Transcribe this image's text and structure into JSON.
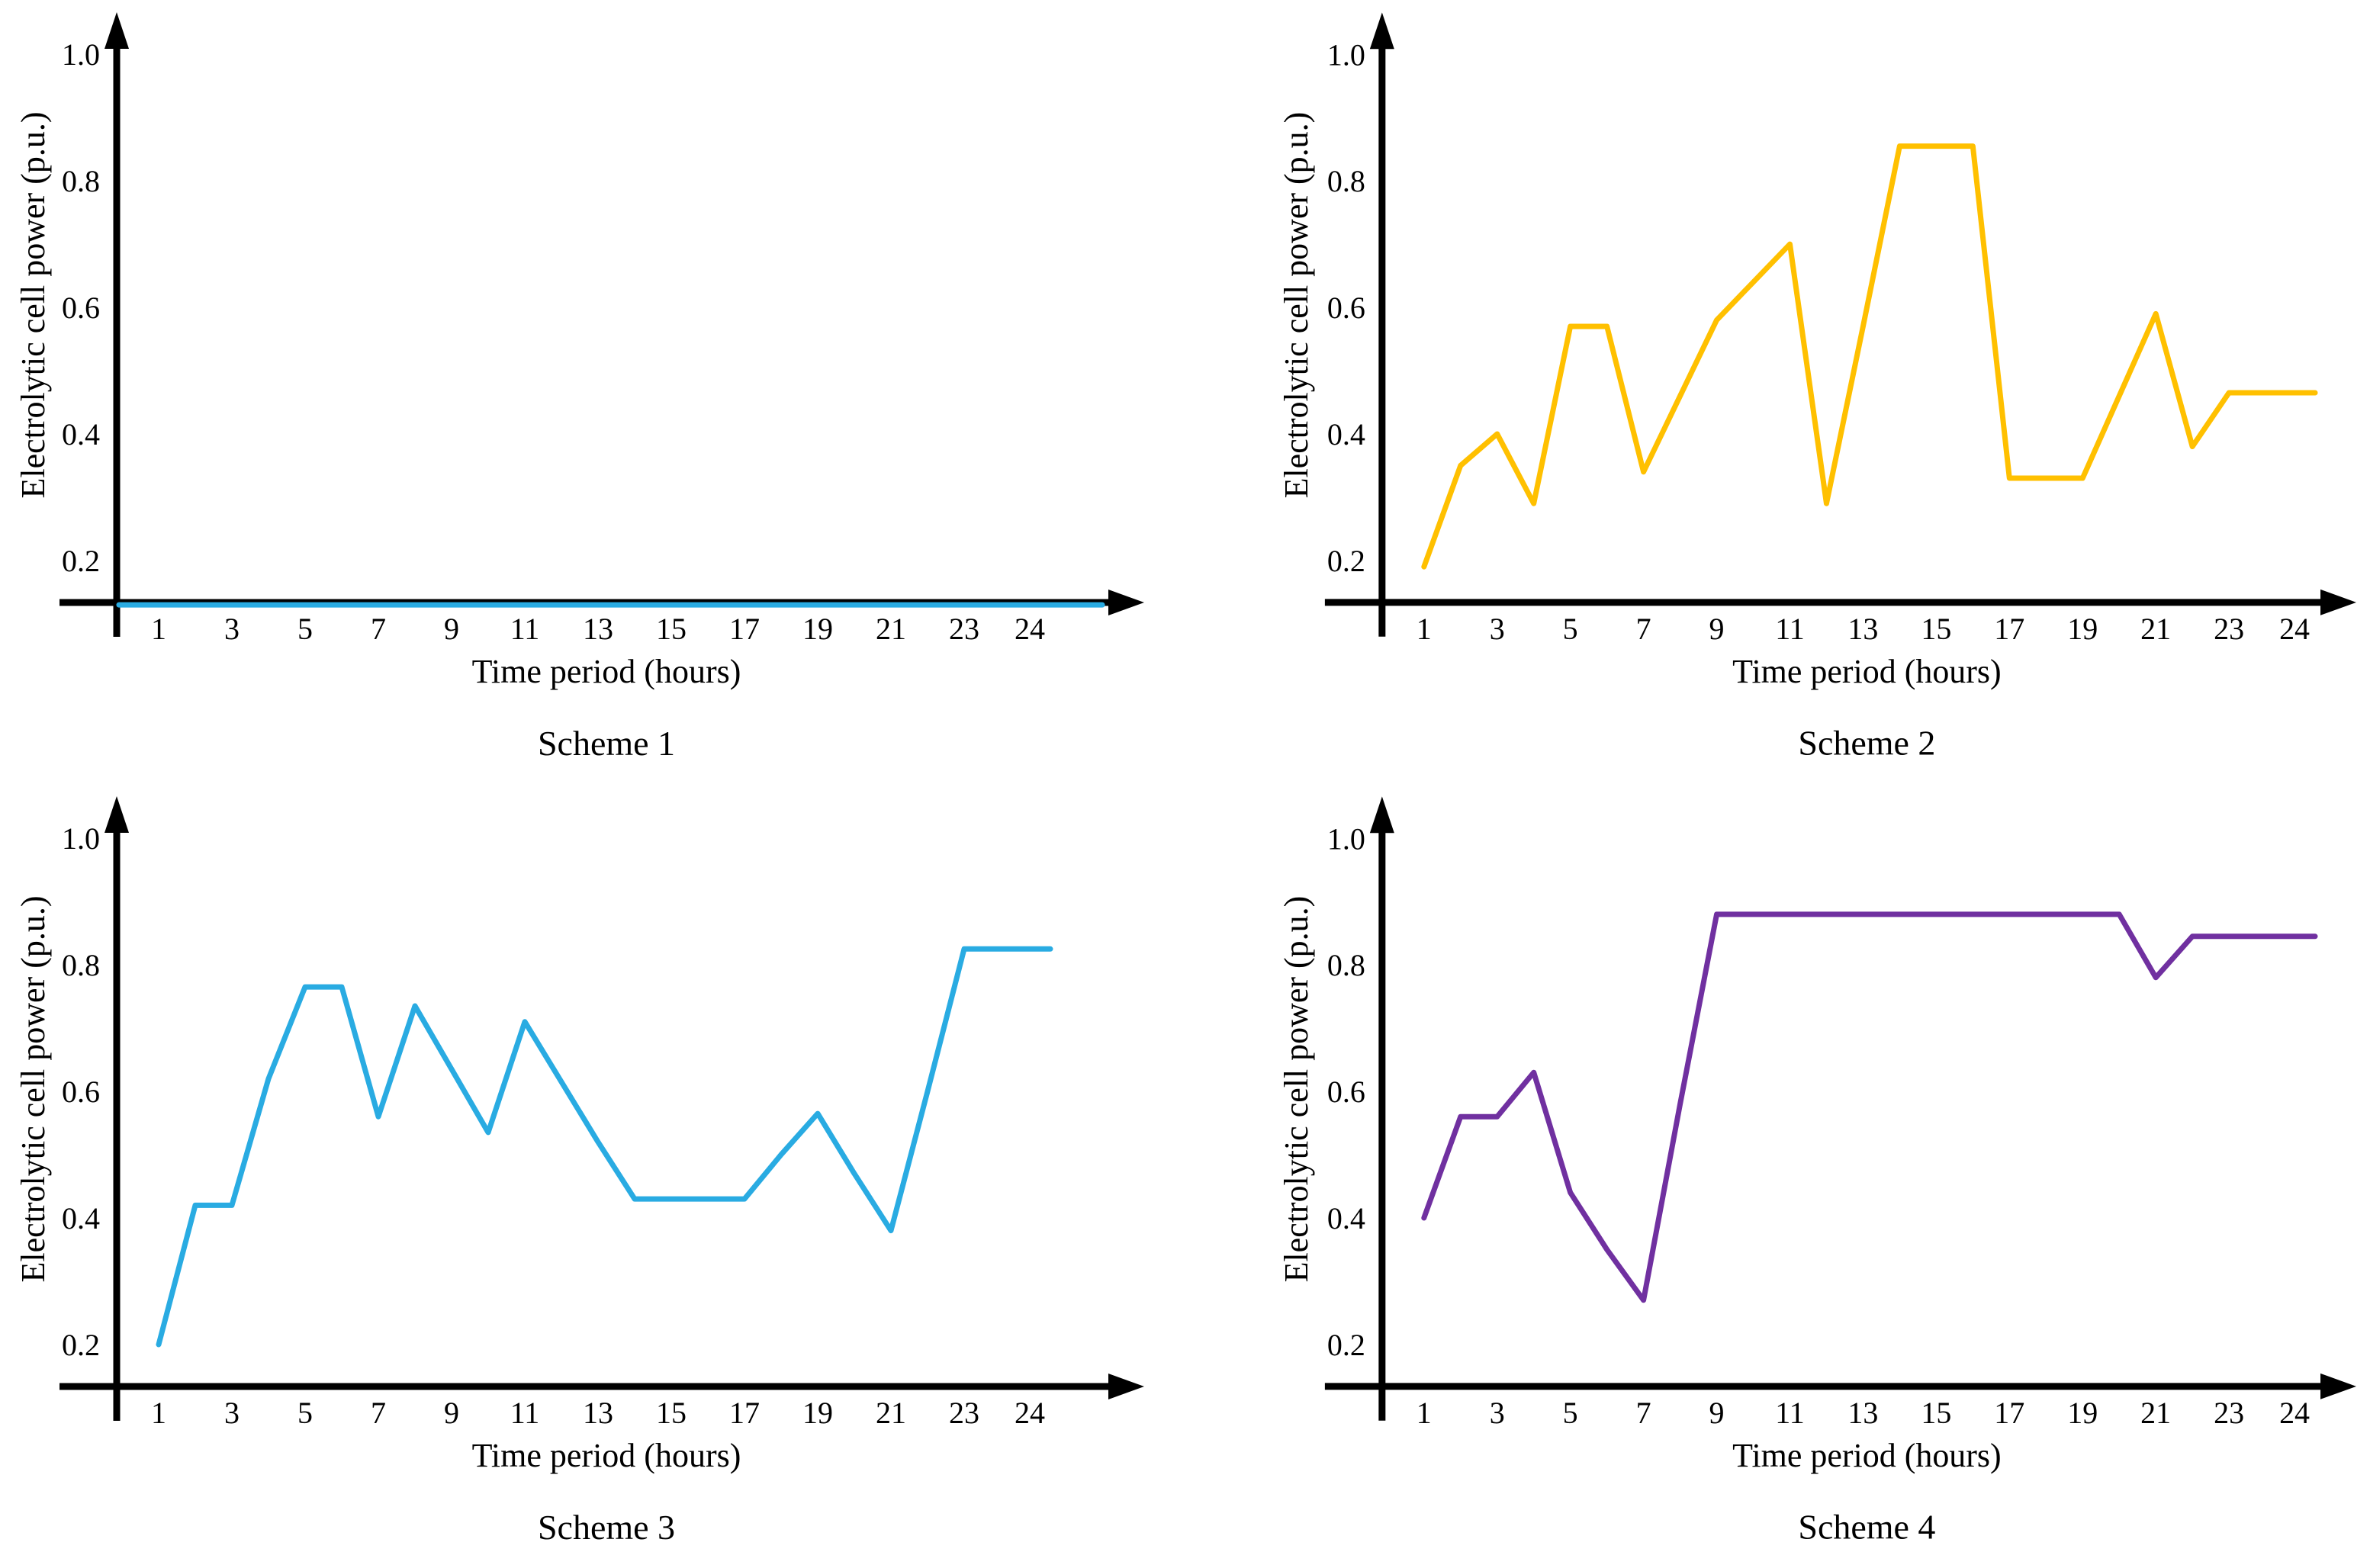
{
  "figure": {
    "background": "#ffffff",
    "axis_color": "#000000",
    "xlabel": "Time period (hours)",
    "ylabel": "Electrolytic cell power (p.u.)",
    "x_tick_labels": [
      1,
      3,
      5,
      7,
      9,
      11,
      13,
      15,
      17,
      19,
      21,
      23,
      24
    ],
    "y_tick_labels": [
      0.2,
      0.4,
      0.6,
      0.8,
      1.0
    ]
  },
  "chart_data": [
    {
      "type": "line",
      "title": "Scheme 1",
      "xlabel": "Time period (hours)",
      "ylabel": "Electrolytic cell power (p.u.)",
      "color": "#29ABE2",
      "grid": false,
      "legend": "none",
      "xlim": [
        1,
        24
      ],
      "ylim": [
        0.13,
        1.05
      ],
      "x_ticks": [
        1,
        3,
        5,
        7,
        9,
        11,
        13,
        15,
        17,
        19,
        21,
        23,
        24
      ],
      "y_ticks": [
        0.2,
        0.4,
        0.6,
        0.8,
        1.0
      ],
      "line_starts_at_axis": true,
      "x": [
        1,
        2,
        3,
        4,
        5,
        6,
        7,
        8,
        9,
        10,
        11,
        12,
        13,
        14,
        15,
        16,
        17,
        18,
        19,
        20,
        21,
        22,
        23,
        24
      ],
      "values": [
        0.13,
        0.13,
        0.13,
        0.13,
        0.13,
        0.13,
        0.13,
        0.13,
        0.13,
        0.13,
        0.13,
        0.13,
        0.13,
        0.13,
        0.13,
        0.13,
        0.13,
        0.13,
        0.13,
        0.13,
        0.13,
        0.13,
        0.13,
        0.13
      ]
    },
    {
      "type": "line",
      "title": "Scheme 2",
      "xlabel": "Time period (hours)",
      "ylabel": "Electrolytic cell power (p.u.)",
      "color": "#FFC000",
      "grid": false,
      "legend": "none",
      "xlim": [
        1,
        24
      ],
      "ylim": [
        0.13,
        1.05
      ],
      "x_ticks": [
        1,
        3,
        5,
        7,
        9,
        11,
        13,
        15,
        17,
        19,
        21,
        23,
        24
      ],
      "y_ticks": [
        0.2,
        0.4,
        0.6,
        0.8,
        1.0
      ],
      "line_starts_at_axis": false,
      "x": [
        1,
        2,
        3,
        4,
        5,
        6,
        7,
        8,
        9,
        10,
        11,
        12,
        13,
        14,
        15,
        16,
        17,
        18,
        19,
        20,
        21,
        22,
        23,
        24
      ],
      "values": [
        0.19,
        0.35,
        0.4,
        0.29,
        0.57,
        0.57,
        0.34,
        0.46,
        0.58,
        0.64,
        0.7,
        0.29,
        0.57,
        0.855,
        0.855,
        0.855,
        0.33,
        0.33,
        0.33,
        0.46,
        0.59,
        0.38,
        0.465,
        0.465
      ]
    },
    {
      "type": "line",
      "title": "Scheme 3",
      "xlabel": "Time period (hours)",
      "ylabel": "Electrolytic cell power (p.u.)",
      "color": "#29ABE2",
      "grid": false,
      "legend": "none",
      "xlim": [
        1,
        24
      ],
      "ylim": [
        0.13,
        1.05
      ],
      "x_ticks": [
        1,
        3,
        5,
        7,
        9,
        11,
        13,
        15,
        17,
        19,
        21,
        23,
        24
      ],
      "y_ticks": [
        0.2,
        0.4,
        0.6,
        0.8,
        1.0
      ],
      "line_starts_at_axis": false,
      "x": [
        1,
        2,
        3,
        4,
        5,
        6,
        7,
        8,
        9,
        10,
        11,
        12,
        13,
        14,
        15,
        16,
        17,
        18,
        19,
        20,
        21,
        22,
        23,
        24
      ],
      "values": [
        0.2,
        0.42,
        0.42,
        0.62,
        0.765,
        0.765,
        0.56,
        0.735,
        0.635,
        0.535,
        0.71,
        0.615,
        0.52,
        0.43,
        0.43,
        0.43,
        0.43,
        0.5,
        0.565,
        0.47,
        0.38,
        0.6,
        0.825,
        0.825
      ]
    },
    {
      "type": "line",
      "title": "Scheme 4",
      "xlabel": "Time period (hours)",
      "ylabel": "Electrolytic cell power (p.u.)",
      "color": "#7030A0",
      "grid": false,
      "legend": "none",
      "xlim": [
        1,
        24
      ],
      "ylim": [
        0.13,
        1.05
      ],
      "x_ticks": [
        1,
        3,
        5,
        7,
        9,
        11,
        13,
        15,
        17,
        19,
        21,
        23,
        24
      ],
      "y_ticks": [
        0.2,
        0.4,
        0.6,
        0.8,
        1.0
      ],
      "line_starts_at_axis": false,
      "x": [
        1,
        2,
        3,
        4,
        5,
        6,
        7,
        8,
        9,
        10,
        11,
        12,
        13,
        14,
        15,
        16,
        17,
        18,
        19,
        20,
        21,
        22,
        23,
        24
      ],
      "values": [
        0.4,
        0.56,
        0.56,
        0.63,
        0.44,
        0.35,
        0.27,
        0.58,
        0.88,
        0.88,
        0.88,
        0.88,
        0.88,
        0.88,
        0.88,
        0.88,
        0.88,
        0.88,
        0.88,
        0.88,
        0.78,
        0.845,
        0.845,
        0.845
      ]
    }
  ]
}
